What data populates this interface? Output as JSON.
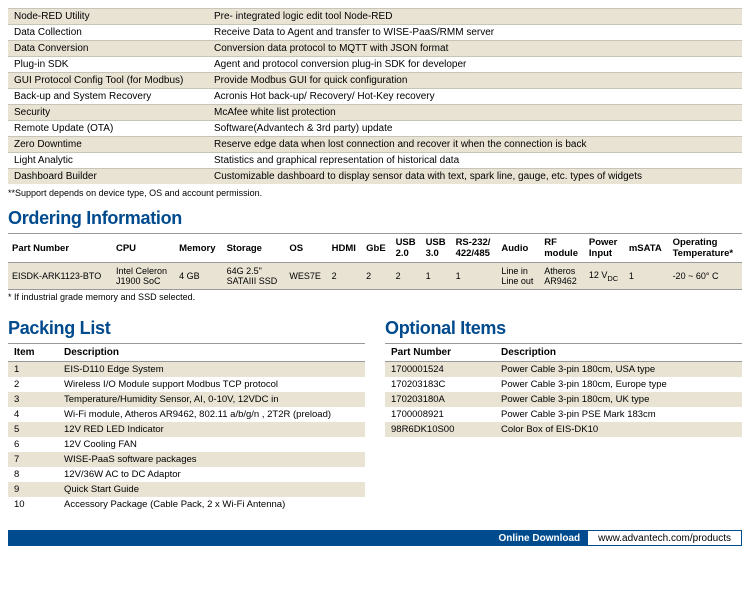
{
  "features": {
    "rows": [
      {
        "key": "Node-RED Utility",
        "val": "Pre- integrated logic edit tool Node-RED"
      },
      {
        "key": "Data Collection",
        "val": "Receive Data to Agent and transfer to WISE-PaaS/RMM server"
      },
      {
        "key": "Data Conversion",
        "val": "Conversion data protocol to MQTT with JSON format"
      },
      {
        "key": "Plug-in SDK",
        "val": "Agent and protocol conversion plug-in SDK for developer"
      },
      {
        "key": "GUI Protocol Config Tool (for Modbus)",
        "val": "Provide Modbus GUI for quick configuration"
      },
      {
        "key": "Back-up and System Recovery",
        "val": "Acronis Hot back-up/ Recovery/ Hot-Key recovery"
      },
      {
        "key": "Security",
        "val": "McAfee white list protection"
      },
      {
        "key": "Remote Update (OTA)",
        "val": "Software(Advantech & 3rd party) update"
      },
      {
        "key": "Zero Downtime",
        "val": "Reserve edge data when lost connection and recover it when the connection is back"
      },
      {
        "key": "Light Analytic",
        "val": "Statistics and graphical representation of historical data"
      },
      {
        "key": "Dashboard Builder",
        "val": "Customizable dashboard to display sensor data with text, spark line, gauge, etc. types of widgets"
      }
    ],
    "footnote": "**Support depends on device type, OS and account permission."
  },
  "ordering": {
    "title": "Ordering Information",
    "headers": [
      "Part Number",
      "CPU",
      "Memory",
      "Storage",
      "OS",
      "HDMI",
      "GbE",
      "USB 2.0",
      "USB 3.0",
      "RS-232/ 422/485",
      "Audio",
      "RF module",
      "Power Input",
      "mSATA",
      "Operating Temperature*"
    ],
    "row": [
      "EISDK-ARK1123-BTO",
      "Intel Celeron J1900 SoC",
      "4 GB",
      "64G 2.5\" SATAIII SSD",
      "WES7E",
      "2",
      "2",
      "2",
      "1",
      "1",
      "Line in Line out",
      "Atheros AR9462",
      "12 Vₓᴄ",
      "1",
      "-20 ~ 60° C"
    ],
    "footnote": "* If industrial grade memory and SSD selected."
  },
  "packing": {
    "title": "Packing List",
    "headers": [
      "Item",
      "Description"
    ],
    "rows": [
      {
        "n": "1",
        "d": "EIS-D110 Edge System"
      },
      {
        "n": "2",
        "d": "Wireless I/O Module support Modbus TCP protocol"
      },
      {
        "n": "3",
        "d": "Temperature/Humidity Sensor, AI, 0-10V, 12VDC in"
      },
      {
        "n": "4",
        "d": "Wi-Fi module, Atheros AR9462, 802.11 a/b/g/n , 2T2R (preload)"
      },
      {
        "n": "5",
        "d": "12V RED LED Indicator"
      },
      {
        "n": "6",
        "d": "12V Cooling FAN"
      },
      {
        "n": "7",
        "d": "WISE-PaaS software packages"
      },
      {
        "n": "8",
        "d": "12V/36W AC to DC Adaptor"
      },
      {
        "n": "9",
        "d": "Quick Start Guide"
      },
      {
        "n": "10",
        "d": "Accessory Package (Cable Pack, 2 x Wi-Fi Antenna)"
      }
    ]
  },
  "optional": {
    "title": "Optional Items",
    "headers": [
      "Part Number",
      "Description"
    ],
    "rows": [
      {
        "p": "1700001524",
        "d": "Power Cable 3-pin 180cm, USA type"
      },
      {
        "p": "170203183C",
        "d": "Power Cable 3-pin 180cm, Europe type"
      },
      {
        "p": "170203180A",
        "d": "Power Cable 3-pin 180cm, UK type"
      },
      {
        "p": "1700008921",
        "d": "Power Cable 3-pin PSE Mark 183cm"
      },
      {
        "p": "98R6DK10S00",
        "d": "Color Box of EIS-DK10"
      }
    ]
  },
  "download": {
    "label": "Online Download",
    "url": "www.advantech.com/products"
  }
}
